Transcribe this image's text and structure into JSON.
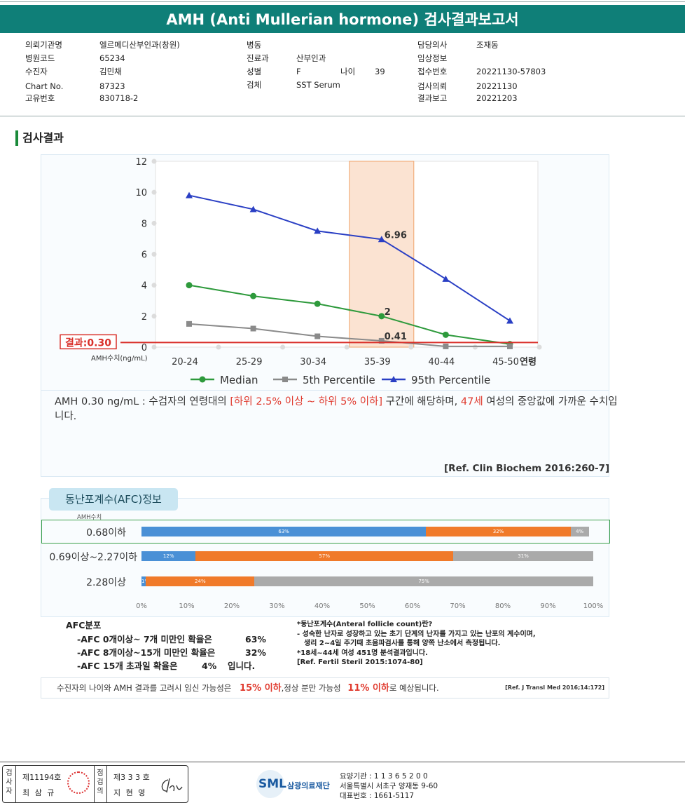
{
  "title": "AMH (Anti Mullerian hormone) 검사결과보고서",
  "info": {
    "col1": [
      {
        "k": "의뢰기관명",
        "v": "엘르메디산부인과(창원)"
      },
      {
        "k": "병원코드",
        "v": "65234"
      },
      {
        "k": "수진자",
        "v": "김민채"
      },
      {
        "k": "Chart No.",
        "v": "87323"
      },
      {
        "k": "고유번호",
        "v": "830718-2"
      }
    ],
    "col2": [
      {
        "k": "병동",
        "v": ""
      },
      {
        "k": "진료과",
        "v": "산부인과"
      },
      {
        "k": "성별",
        "v": "F"
      },
      {
        "k": "검체",
        "v": "SST Serum"
      }
    ],
    "age_label": "나이",
    "age_value": "39",
    "col3": [
      {
        "k": "담당의사",
        "v": "조재동"
      },
      {
        "k": "임상정보",
        "v": ""
      },
      {
        "k": "접수번호",
        "v": "20221130-57803"
      },
      {
        "k": "검사의뢰",
        "v": "20221130"
      },
      {
        "k": "결과보고",
        "v": "20221203"
      }
    ]
  },
  "section_title": "검사결과",
  "chart_data": {
    "type": "line",
    "categories": [
      "20-24",
      "25-29",
      "30-34",
      "35-39",
      "40-44",
      "45-50"
    ],
    "ylim": [
      0,
      12
    ],
    "yticks": [
      "0",
      "2",
      "4",
      "6",
      "8",
      "10",
      "12"
    ],
    "xlabel": "연령",
    "ylabel": "AMH수치(ng/mL)",
    "highlight_category": "35-39",
    "series": [
      {
        "name": "Median",
        "color": "#2e9a3c",
        "marker": "circle",
        "values": [
          4.0,
          3.3,
          2.8,
          2,
          0.8,
          0.2
        ]
      },
      {
        "name": "5th Percentile",
        "color": "#8a8a8a",
        "marker": "square",
        "values": [
          1.5,
          1.2,
          0.7,
          0.41,
          0.05,
          0.05
        ]
      },
      {
        "name": "95th Percentile",
        "color": "#2a3fc4",
        "marker": "triangle",
        "values": [
          9.8,
          8.9,
          7.5,
          6.96,
          4.4,
          1.7
        ]
      }
    ],
    "point_labels": [
      {
        "series": 2,
        "index": 3,
        "text": "6.96"
      },
      {
        "series": 0,
        "index": 3,
        "text": "2"
      },
      {
        "series": 1,
        "index": 3,
        "text": "0.41"
      }
    ],
    "result_line": {
      "value": 0.3,
      "label": "결과:0.30",
      "color": "#d9302a"
    }
  },
  "desc": {
    "p1": "AMH  0.30 ng/mL : 수검자의 연령대의 ",
    "r1": "[하위 2.5% 이상 ~ 하위 5% 이하]",
    "p2": " 구간에 해당하며, ",
    "r2": "47세",
    "p3": " 여성의 중앙값에 가까운 수치입니다."
  },
  "ref1": "[Ref. Clin Biochem 2016:260-7]",
  "afc": {
    "title": "동난포계수(AFC)정보",
    "amh_label": "AMH수치",
    "colors": {
      "blue": "#4a90d6",
      "orange": "#f07a2a",
      "gray": "#aaaaaa"
    },
    "rows": [
      {
        "label": "0.68이하",
        "segments": [
          {
            "v": 63,
            "t": "63%",
            "c": "blue"
          },
          {
            "v": 32,
            "t": "32%",
            "c": "orange"
          },
          {
            "v": 4,
            "t": "4%",
            "c": "gray"
          }
        ]
      },
      {
        "label": "0.69이상~2.27이하",
        "segments": [
          {
            "v": 12,
            "t": "12%",
            "c": "blue"
          },
          {
            "v": 57,
            "t": "57%",
            "c": "orange"
          },
          {
            "v": 31,
            "t": "31%",
            "c": "gray"
          }
        ]
      },
      {
        "label": "2.28이상",
        "segments": [
          {
            "v": 1,
            "t": "1%",
            "c": "blue"
          },
          {
            "v": 24,
            "t": "24%",
            "c": "orange"
          },
          {
            "v": 75,
            "t": "75%",
            "c": "gray"
          }
        ]
      }
    ],
    "axis": [
      "0%",
      "10%",
      "20%",
      "30%",
      "40%",
      "50%",
      "60%",
      "70%",
      "80%",
      "90%",
      "100%"
    ],
    "dist_title": "AFC분포",
    "dist": [
      {
        "t": "-AFC  0개이상~ 7개 미만인 확율은",
        "p": "63%"
      },
      {
        "t": "-AFC  8개이상~15개 미만인 확율은",
        "p": "32%"
      },
      {
        "t": "-AFC  15개 초과일 확율은",
        "p": "4%",
        "tail": "입니다."
      }
    ],
    "note_title": "*동난포계수(Anteral follicle count)란?",
    "note1": "- 성숙한 난자로 성장하고 있는 초기 단계의 난자를 가지고 있는 난포의 계수이며,",
    "note2": "  생리 2~4일 주기때 초음파검사를 통해 양쪽 난소에서 측정됩니다.",
    "note3": "*18세~44세 여성 451명 분석결과입니다.",
    "note_ref": "[Ref. Fertil Steril 2015:1074-80]"
  },
  "bottom": {
    "p1": "수진자의 나이와 AMH 결과를 고려시 임신 가능성은",
    "r1": "15% 이하",
    "p2": ",정상 분만 가능성",
    "r2": "11% 이하",
    "p3": "로 예상됩니다.",
    "ref": "[Ref. J Transl Med 2016;14:172]"
  },
  "footer": {
    "inspector_label": "검사자",
    "inspector_no": "제11194호",
    "inspector_name": "최 삼 규",
    "checker_label": "점검의",
    "checker_no": "제3 3 3 호",
    "checker_name": "지 현 영",
    "logo_text": "SML",
    "org_name": "삼광의료재단",
    "line1": "요양기관 : 1 1 3 6 5 2 0 0",
    "line2": "서울특별시 서초구 양재동 9-60",
    "line3": "대표번호 : 1661-5117"
  }
}
